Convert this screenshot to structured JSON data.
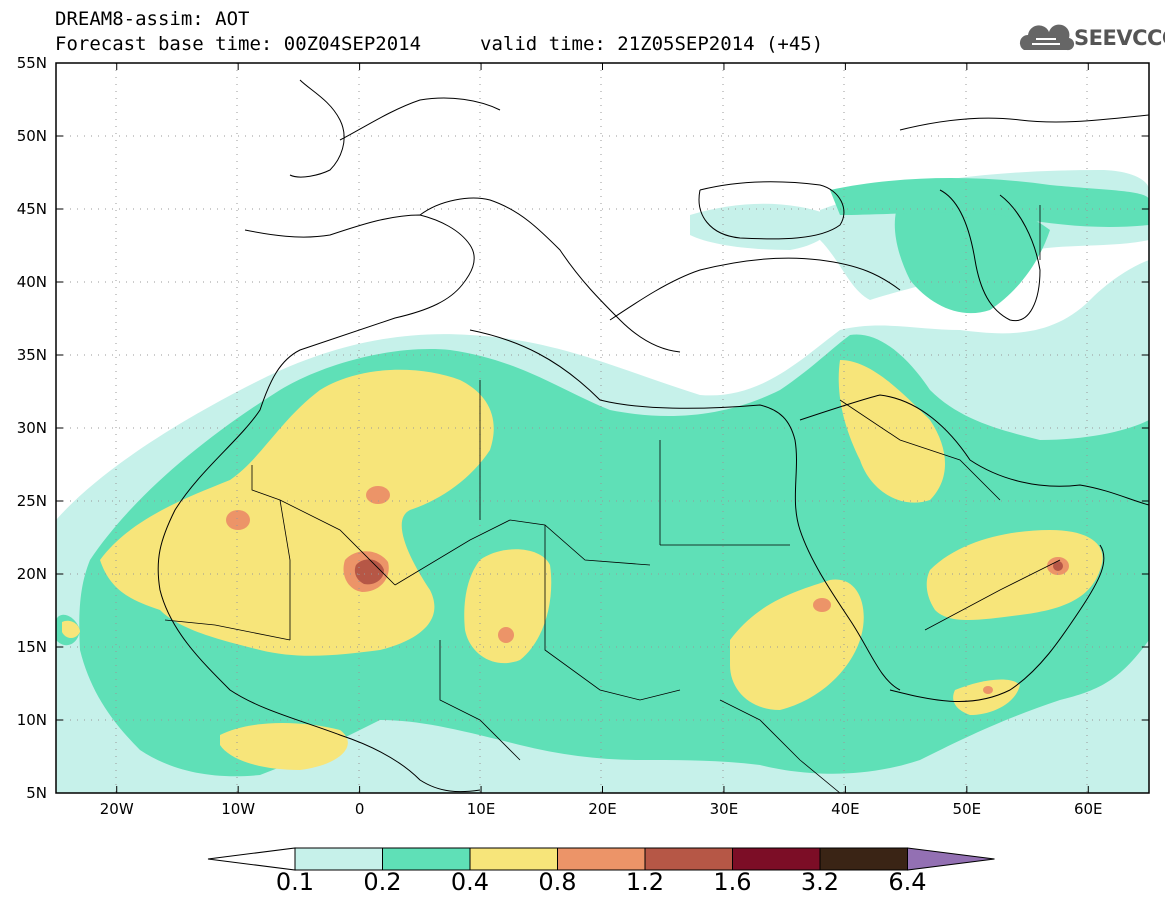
{
  "header": {
    "line1": "DREAM8-assim: AOT",
    "base_time": "Forecast base time: 00Z04SEP2014",
    "valid_time": "valid time: 21Z05SEP2014 (+45)"
  },
  "logo": {
    "text": "SEEVCCC",
    "icon": "cloud-icon"
  },
  "map": {
    "lon_range": [
      -25,
      65
    ],
    "lat_range": [
      5,
      55
    ],
    "lat_ticks": [
      {
        "value": 55,
        "label": "55N"
      },
      {
        "value": 50,
        "label": "50N"
      },
      {
        "value": 45,
        "label": "45N"
      },
      {
        "value": 40,
        "label": "40N"
      },
      {
        "value": 35,
        "label": "35N"
      },
      {
        "value": 30,
        "label": "30N"
      },
      {
        "value": 25,
        "label": "25N"
      },
      {
        "value": 20,
        "label": "20N"
      },
      {
        "value": 15,
        "label": "15N"
      },
      {
        "value": 10,
        "label": "10N"
      },
      {
        "value": 5,
        "label": "5N"
      }
    ],
    "lon_ticks": [
      {
        "value": -20,
        "label": "20W"
      },
      {
        "value": -10,
        "label": "10W"
      },
      {
        "value": 0,
        "label": "0"
      },
      {
        "value": 10,
        "label": "10E"
      },
      {
        "value": 20,
        "label": "20E"
      },
      {
        "value": 30,
        "label": "30E"
      },
      {
        "value": 40,
        "label": "40E"
      },
      {
        "value": 50,
        "label": "50E"
      },
      {
        "value": 60,
        "label": "60E"
      }
    ]
  },
  "legend": {
    "levels": [
      "0.1",
      "0.2",
      "0.4",
      "0.8",
      "1.2",
      "1.6",
      "3.2",
      "6.4"
    ],
    "colors": [
      "#ffffff",
      "#c6f1ea",
      "#5fe0b7",
      "#f7e57a",
      "#ec9468",
      "#b65746",
      "#7c0d26",
      "#3a2415",
      "#9370b3"
    ]
  }
}
